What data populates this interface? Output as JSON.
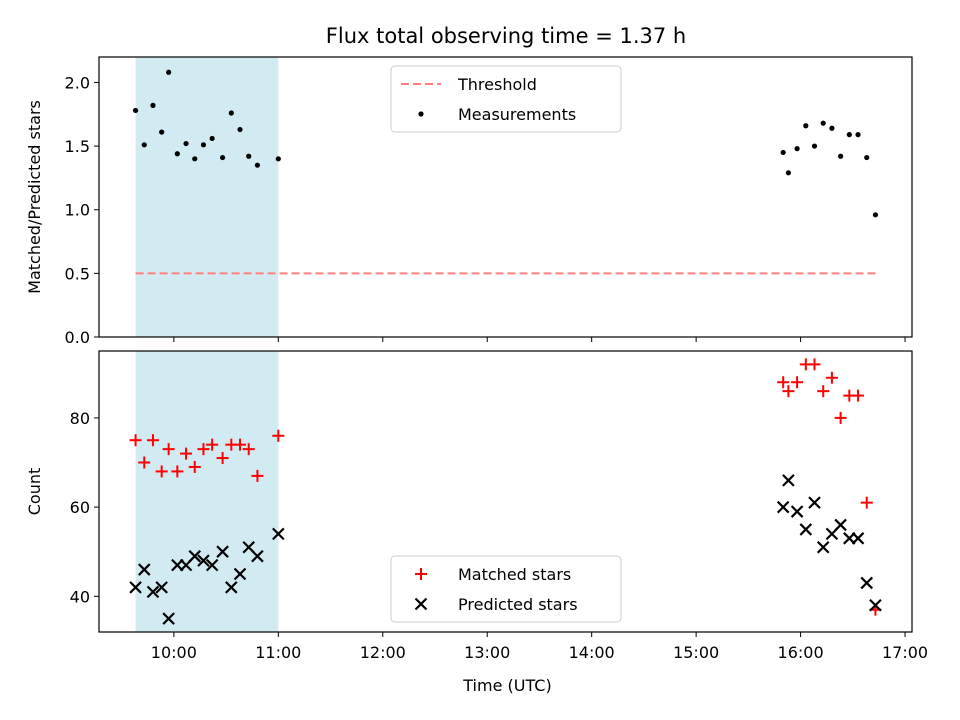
{
  "title": "Flux total observing time = 1.37 h",
  "colors": {
    "shade": "#add8e6",
    "threshold": "#ff7f7f",
    "matched": "#ff0000",
    "predicted": "#000000",
    "measurements": "#000000"
  },
  "chart_data": [
    {
      "type": "scatter",
      "ylabel": "Matched/Predicted stars",
      "xlim": [
        "09:17",
        "17:04"
      ],
      "ylim": [
        0,
        2.2
      ],
      "yticks": [
        "0.0",
        "0.5",
        "1.0",
        "1.5",
        "2.0"
      ],
      "ytick_values": [
        0,
        0.5,
        1.0,
        1.5,
        2.0
      ],
      "shaded_span": [
        "09:38",
        "11:00"
      ],
      "legend": {
        "placement": "top-center",
        "entries": [
          "Threshold",
          "Measurements"
        ]
      },
      "threshold": {
        "name": "Threshold",
        "y": 0.5,
        "x_range": [
          "09:38",
          "16:43"
        ],
        "style": "dashed"
      },
      "series": [
        {
          "name": "Measurements",
          "x": [
            "09:38",
            "09:43",
            "09:48",
            "09:53",
            "09:57",
            "10:02",
            "10:07",
            "10:12",
            "10:17",
            "10:22",
            "10:28",
            "10:33",
            "10:38",
            "10:43",
            "10:48",
            "11:00",
            "15:50",
            "15:53",
            "15:58",
            "16:03",
            "16:08",
            "16:13",
            "16:18",
            "16:23",
            "16:28",
            "16:33",
            "16:38",
            "16:43"
          ],
          "y": [
            1.78,
            1.51,
            1.82,
            1.61,
            2.08,
            1.44,
            1.52,
            1.4,
            1.51,
            1.56,
            1.41,
            1.76,
            1.63,
            1.42,
            1.35,
            1.4,
            1.45,
            1.29,
            1.48,
            1.66,
            1.5,
            1.68,
            1.64,
            1.42,
            1.59,
            1.59,
            1.41,
            0.96
          ]
        }
      ]
    },
    {
      "type": "scatter",
      "xlabel": "Time (UTC)",
      "ylabel": "Count",
      "xlim": [
        "09:17",
        "17:04"
      ],
      "ylim": [
        32,
        95
      ],
      "yticks": [
        "40",
        "60",
        "80"
      ],
      "ytick_values": [
        40,
        60,
        80
      ],
      "xticks": [
        "10:00",
        "11:00",
        "12:00",
        "13:00",
        "14:00",
        "15:00",
        "16:00",
        "17:00"
      ],
      "shaded_span": [
        "09:38",
        "11:00"
      ],
      "legend": {
        "placement": "bottom-center",
        "entries": [
          "Matched stars",
          "Predicted stars"
        ]
      },
      "series": [
        {
          "name": "Matched stars",
          "marker": "+",
          "x": [
            "09:38",
            "09:43",
            "09:48",
            "09:53",
            "09:57",
            "10:02",
            "10:07",
            "10:12",
            "10:17",
            "10:22",
            "10:28",
            "10:33",
            "10:38",
            "10:43",
            "10:48",
            "11:00",
            "15:50",
            "15:53",
            "15:58",
            "16:03",
            "16:08",
            "16:13",
            "16:18",
            "16:23",
            "16:28",
            "16:33",
            "16:38",
            "16:43"
          ],
          "y": [
            75,
            70,
            75,
            68,
            73,
            68,
            72,
            69,
            73,
            74,
            71,
            74,
            74,
            73,
            67,
            76,
            88,
            86,
            88,
            92,
            92,
            86,
            89,
            80,
            85,
            85,
            61,
            37
          ]
        },
        {
          "name": "Predicted stars",
          "marker": "x",
          "x": [
            "09:38",
            "09:43",
            "09:48",
            "09:53",
            "09:57",
            "10:02",
            "10:07",
            "10:12",
            "10:17",
            "10:22",
            "10:28",
            "10:33",
            "10:38",
            "10:43",
            "10:48",
            "11:00",
            "15:50",
            "15:53",
            "15:58",
            "16:03",
            "16:08",
            "16:13",
            "16:18",
            "16:23",
            "16:28",
            "16:33",
            "16:38",
            "16:43"
          ],
          "y": [
            42,
            46,
            41,
            42,
            35,
            47,
            47,
            49,
            48,
            47,
            50,
            42,
            45,
            51,
            49,
            54,
            60,
            66,
            59,
            55,
            61,
            51,
            54,
            56,
            53,
            53,
            43,
            38
          ]
        }
      ]
    }
  ]
}
